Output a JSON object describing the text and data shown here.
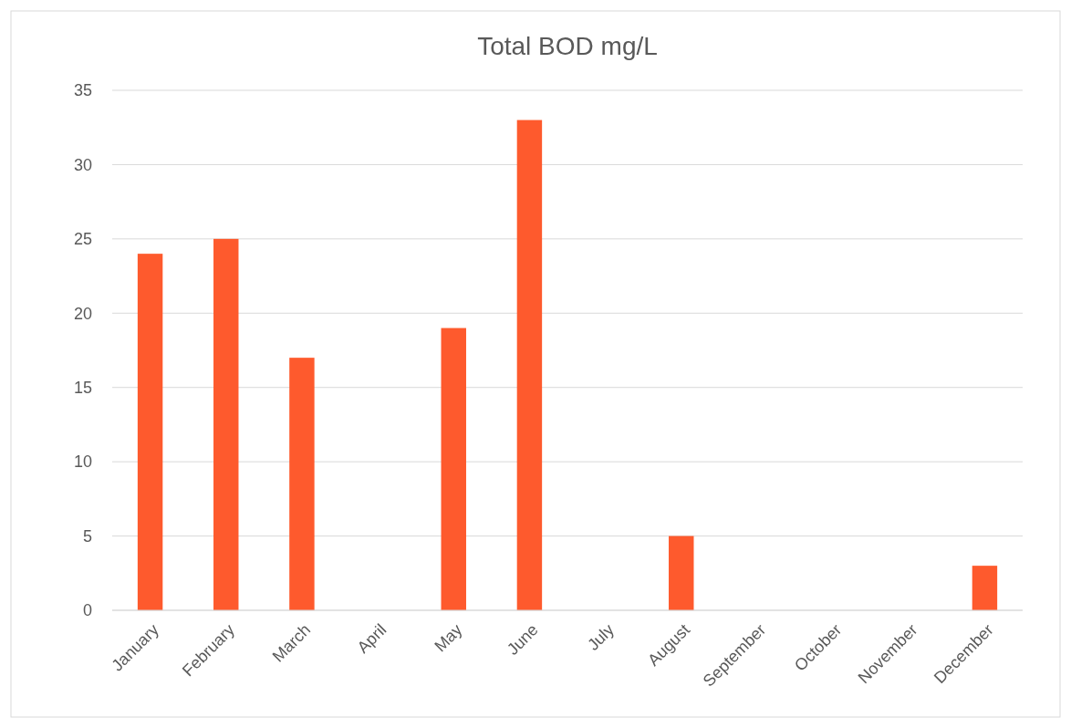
{
  "chart_data": {
    "type": "bar",
    "title": "Total BOD mg/L",
    "categories": [
      "January",
      "February",
      "March",
      "April",
      "May",
      "June",
      "July",
      "August",
      "September",
      "October",
      "November",
      "December"
    ],
    "values": [
      24,
      25,
      17,
      null,
      19,
      33,
      null,
      5,
      null,
      null,
      null,
      3
    ],
    "color": "#fe5a2d",
    "ylim": [
      0,
      35
    ],
    "yticks": [
      0,
      5,
      10,
      15,
      20,
      25,
      30,
      35
    ],
    "grid": "y"
  }
}
